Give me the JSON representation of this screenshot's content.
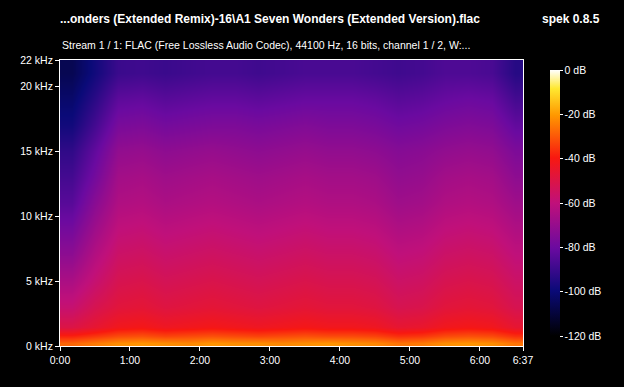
{
  "chart_data": {
    "type": "heatmap",
    "title": "...onders (Extended Remix)-16\\A1 Seven Wonders (Extended Version).flac",
    "subtitle": "Stream 1 / 1: FLAC (Free Lossless Audio Codec), 44100 Hz, 16 bits, channel 1 / 2, W:...",
    "annotations": [
      {
        "text": "spek 0.8.5"
      }
    ],
    "x": [
      10,
      30,
      50,
      70,
      90,
      110,
      130,
      150,
      170,
      190,
      210,
      230,
      250,
      270,
      290,
      310,
      330,
      350,
      370,
      390
    ],
    "y": [
      0.25,
      0.75,
      1.5,
      3,
      5,
      7,
      9,
      11,
      13,
      15,
      17,
      19,
      21
    ],
    "cells": [
      [
        -28,
        -25,
        -22,
        -21,
        -22,
        -23,
        -21,
        -22,
        -22,
        -23,
        -22,
        -21,
        -22,
        -23,
        -26,
        -25,
        -22,
        -21,
        -22,
        -26
      ],
      [
        -38,
        -35,
        -32,
        -31,
        -33,
        -32,
        -31,
        -32,
        -33,
        -32,
        -31,
        -32,
        -32,
        -33,
        -36,
        -35,
        -32,
        -31,
        -32,
        -36
      ],
      [
        -50,
        -46,
        -42,
        -41,
        -43,
        -42,
        -41,
        -42,
        -43,
        -42,
        -41,
        -42,
        -42,
        -43,
        -46,
        -45,
        -42,
        -41,
        -42,
        -46
      ],
      [
        -58,
        -52,
        -48,
        -47,
        -49,
        -48,
        -47,
        -48,
        -49,
        -48,
        -47,
        -48,
        -48,
        -49,
        -52,
        -51,
        -48,
        -47,
        -48,
        -52
      ],
      [
        -65,
        -58,
        -52,
        -51,
        -53,
        -52,
        -51,
        -52,
        -53,
        -52,
        -51,
        -52,
        -52,
        -53,
        -56,
        -55,
        -52,
        -51,
        -52,
        -56
      ],
      [
        -72,
        -63,
        -56,
        -55,
        -57,
        -56,
        -55,
        -56,
        -57,
        -56,
        -55,
        -56,
        -56,
        -57,
        -60,
        -59,
        -56,
        -55,
        -56,
        -60
      ],
      [
        -78,
        -68,
        -60,
        -59,
        -61,
        -60,
        -59,
        -60,
        -61,
        -60,
        -59,
        -60,
        -60,
        -61,
        -64,
        -63,
        -60,
        -59,
        -60,
        -64
      ],
      [
        -84,
        -73,
        -64,
        -63,
        -65,
        -64,
        -63,
        -64,
        -65,
        -64,
        -63,
        -64,
        -64,
        -65,
        -68,
        -67,
        -64,
        -63,
        -64,
        -68
      ],
      [
        -88,
        -78,
        -67,
        -66,
        -68,
        -67,
        -66,
        -67,
        -68,
        -67,
        -66,
        -67,
        -67,
        -68,
        -71,
        -70,
        -67,
        -66,
        -67,
        -72
      ],
      [
        -92,
        -82,
        -71,
        -70,
        -72,
        -71,
        -70,
        -71,
        -72,
        -71,
        -70,
        -71,
        -71,
        -72,
        -74,
        -73,
        -71,
        -70,
        -71,
        -76
      ],
      [
        -98,
        -88,
        -77,
        -76,
        -78,
        -77,
        -76,
        -76,
        -77,
        -76,
        -75,
        -76,
        -76,
        -77,
        -79,
        -78,
        -76,
        -75,
        -76,
        -82
      ],
      [
        -102,
        -93,
        -83,
        -82,
        -84,
        -83,
        -82,
        -82,
        -83,
        -82,
        -81,
        -81,
        -81,
        -82,
        -84,
        -83,
        -81,
        -80,
        -81,
        -88
      ],
      [
        -106,
        -98,
        -90,
        -89,
        -90,
        -89,
        -88,
        -88,
        -89,
        -88,
        -87,
        -87,
        -87,
        -88,
        -89,
        -88,
        -86,
        -86,
        -87,
        -94
      ]
    ],
    "xlim": [
      0,
      397
    ],
    "xticks": [
      {
        "value": 0,
        "label": "0:00"
      },
      {
        "value": 60,
        "label": "1:00"
      },
      {
        "value": 120,
        "label": "2:00"
      },
      {
        "value": 180,
        "label": "3:00"
      },
      {
        "value": 240,
        "label": "4:00"
      },
      {
        "value": 300,
        "label": "5:00"
      },
      {
        "value": 360,
        "label": "6:00"
      },
      {
        "value": 397,
        "label": "6:37"
      }
    ],
    "ylim": [
      0,
      22
    ],
    "yticks": [
      {
        "value": 0,
        "label": "0 kHz"
      },
      {
        "value": 5,
        "label": "5 kHz"
      },
      {
        "value": 10,
        "label": "10 kHz"
      },
      {
        "value": 15,
        "label": "15 kHz"
      },
      {
        "value": 20,
        "label": "20 kHz"
      },
      {
        "value": 22,
        "label": "22 kHz"
      }
    ],
    "zlim": [
      -120,
      0
    ],
    "zticks": [
      {
        "value": 0,
        "label": "0 dB"
      },
      {
        "value": -20,
        "label": "-20 dB"
      },
      {
        "value": -40,
        "label": "-40 dB"
      },
      {
        "value": -60,
        "label": "-60 dB"
      },
      {
        "value": -80,
        "label": "-80 dB"
      },
      {
        "value": -100,
        "label": "-100 dB"
      },
      {
        "value": -120,
        "label": "-120 dB"
      }
    ]
  }
}
